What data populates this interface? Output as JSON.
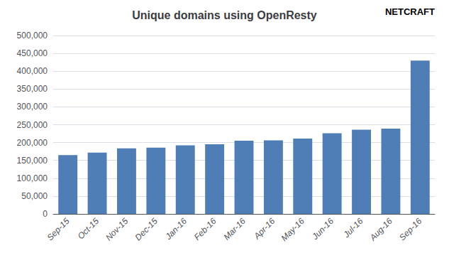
{
  "chart_data": {
    "type": "bar",
    "title": "Unique domains using OpenResty",
    "categories": [
      "Sep-15",
      "Oct-15",
      "Nov-15",
      "Dec-15",
      "Jan-16",
      "Feb-16",
      "Mar-16",
      "Apr-16",
      "May-16",
      "Jun-16",
      "Jul-16",
      "Aug-16",
      "Sep-16"
    ],
    "values": [
      165000,
      172000,
      184000,
      186000,
      192000,
      195000,
      205000,
      206000,
      211000,
      226000,
      236000,
      239000,
      430000
    ],
    "color": "#4e7eb5",
    "ylim": [
      0,
      500000
    ],
    "yticks": [
      0,
      {
        "value": 50000,
        "label": "50,000"
      },
      {
        "value": 100000,
        "label": "100,000"
      },
      {
        "value": 150000,
        "label": "150,000"
      },
      {
        "value": 200000,
        "label": "200,000"
      },
      {
        "value": 250000,
        "label": "250,000"
      },
      {
        "value": 300000,
        "label": "300,000"
      },
      {
        "value": 350000,
        "label": "350,000"
      },
      {
        "value": 400000,
        "label": "400,000"
      },
      {
        "value": 450000,
        "label": "450,000"
      },
      {
        "value": 500000,
        "label": "500,000"
      }
    ],
    "grid": true,
    "annotations": [
      "NETCRAFT"
    ]
  }
}
